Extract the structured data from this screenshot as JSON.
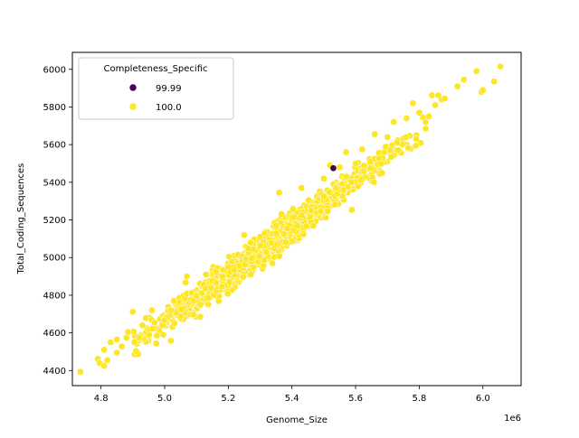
{
  "chart_data": {
    "type": "scatter",
    "title": "",
    "xlabel": "Genome_Size",
    "ylabel": "Total_Coding_Sequences",
    "x_offset_label": "1e6",
    "xlim": [
      4.71,
      6.12
    ],
    "ylim": [
      4320,
      6090
    ],
    "x_ticks": [
      4.8,
      5.0,
      5.2,
      5.4,
      5.6,
      5.8,
      6.0
    ],
    "x_tick_labels": [
      "4.8",
      "5.0",
      "5.2",
      "5.4",
      "5.6",
      "5.8",
      "6.0"
    ],
    "y_ticks": [
      4400,
      4600,
      4800,
      5000,
      5200,
      5400,
      5600,
      5800,
      6000
    ],
    "y_tick_labels": [
      "4400",
      "4600",
      "4800",
      "5000",
      "5200",
      "5400",
      "5600",
      "5800",
      "6000"
    ],
    "grid": false,
    "legend": {
      "title": "Completeness_Specific",
      "placement": "upper-left",
      "entries": [
        {
          "label": "99.99",
          "color": "#440154"
        },
        {
          "label": "100.0",
          "color": "#fde725"
        }
      ]
    },
    "trend": {
      "slope": 1248,
      "intercept": -1581,
      "noise_sd": 38
    },
    "point_counts": {
      "99.99": 1,
      "100.0": 1200
    },
    "series": [
      {
        "name": "99.99",
        "color": "#440154",
        "points": [
          [
            5.53,
            5475
          ]
        ]
      },
      {
        "name": "100.0",
        "color": "#fde725",
        "points": [
          [
            4.735,
            4393
          ],
          [
            4.79,
            4462
          ],
          [
            4.795,
            4440
          ],
          [
            4.81,
            4425
          ],
          [
            4.81,
            4510
          ],
          [
            4.82,
            4455
          ],
          [
            4.83,
            4550
          ],
          [
            4.85,
            4565
          ],
          [
            4.85,
            4495
          ],
          [
            4.865,
            4528
          ],
          [
            4.88,
            4575
          ],
          [
            4.885,
            4605
          ],
          [
            4.9,
            4712
          ],
          [
            4.905,
            4550
          ],
          [
            4.92,
            4575
          ],
          [
            4.93,
            4640
          ],
          [
            4.96,
            4720
          ],
          [
            5.02,
            4720
          ],
          [
            5.07,
            4900
          ],
          [
            5.09,
            4770
          ],
          [
            5.13,
            4910
          ],
          [
            5.18,
            4845
          ],
          [
            5.2,
            4950
          ],
          [
            5.25,
            5120
          ],
          [
            5.27,
            5080
          ],
          [
            5.3,
            5110
          ],
          [
            5.35,
            5170
          ],
          [
            5.36,
            5345
          ],
          [
            5.43,
            5370
          ],
          [
            5.43,
            5225
          ],
          [
            5.46,
            5250
          ],
          [
            5.5,
            5420
          ],
          [
            5.5,
            5325
          ],
          [
            5.52,
            5490
          ],
          [
            5.55,
            5480
          ],
          [
            5.57,
            5560
          ],
          [
            5.6,
            5500
          ],
          [
            5.62,
            5575
          ],
          [
            5.66,
            5655
          ],
          [
            5.7,
            5640
          ],
          [
            5.72,
            5720
          ],
          [
            5.73,
            5610
          ],
          [
            5.76,
            5740
          ],
          [
            5.78,
            5820
          ],
          [
            5.79,
            5630
          ],
          [
            5.8,
            5770
          ],
          [
            5.82,
            5720
          ],
          [
            5.83,
            5750
          ],
          [
            5.84,
            5862
          ],
          [
            5.85,
            5810
          ],
          [
            5.86,
            5862
          ],
          [
            5.87,
            5840
          ],
          [
            5.88,
            5845
          ],
          [
            5.92,
            5910
          ],
          [
            5.94,
            5945
          ],
          [
            5.98,
            5990
          ],
          [
            5.995,
            5880
          ],
          [
            6.0,
            5890
          ],
          [
            6.035,
            5935
          ],
          [
            6.055,
            6015
          ]
        ]
      }
    ]
  }
}
